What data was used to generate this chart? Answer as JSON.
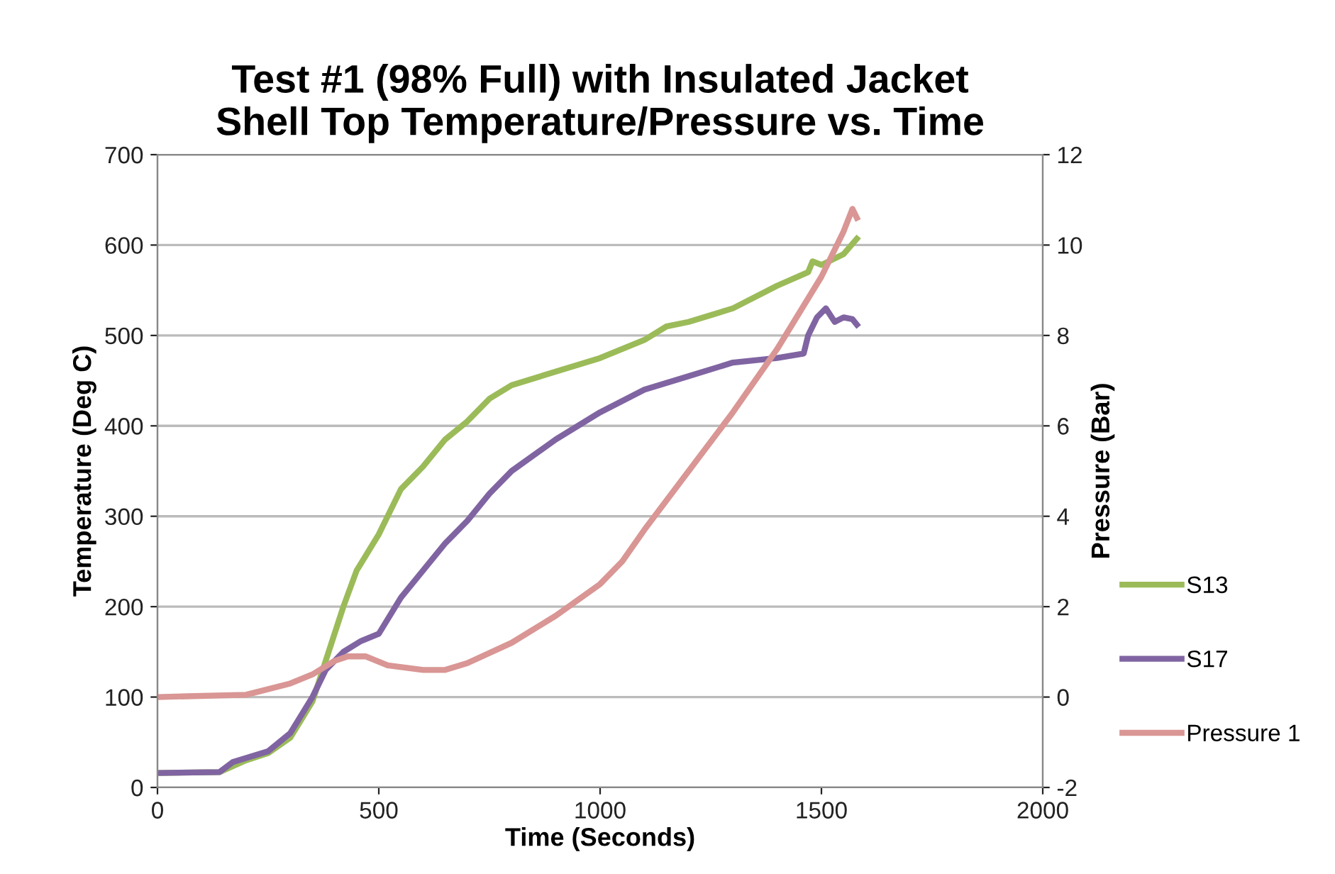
{
  "chart_data": {
    "type": "line",
    "title": "Test #1 (98% Full) with Insulated Jacket\nShell Top Temperature/Pressure vs. Time",
    "xlabel": "Time (Seconds)",
    "ylabel": "Temperature (Deg C)",
    "y2label": "Pressure (Bar)",
    "series": [
      {
        "name": "S13",
        "color": "#9bbb59",
        "x": [
          0,
          140,
          200,
          250,
          300,
          350,
          380,
          420,
          450,
          500,
          550,
          600,
          650,
          700,
          750,
          800,
          900,
          1000,
          1100,
          1150,
          1200,
          1300,
          1400,
          1470,
          1480,
          1500,
          1550,
          1580
        ],
        "values": [
          16,
          17,
          30,
          38,
          55,
          95,
          140,
          200,
          240,
          280,
          330,
          355,
          385,
          405,
          430,
          445,
          460,
          475,
          495,
          510,
          515,
          530,
          555,
          570,
          582,
          578,
          590,
          607
        ]
      },
      {
        "name": "S17",
        "color": "#8064a2",
        "x": [
          0,
          140,
          170,
          250,
          300,
          350,
          380,
          420,
          460,
          500,
          550,
          600,
          650,
          700,
          750,
          800,
          900,
          1000,
          1100,
          1200,
          1300,
          1400,
          1460,
          1470,
          1490,
          1510,
          1530,
          1550,
          1570,
          1580
        ],
        "values": [
          16,
          17,
          28,
          40,
          60,
          100,
          130,
          150,
          162,
          170,
          210,
          240,
          270,
          295,
          325,
          350,
          385,
          415,
          440,
          455,
          470,
          475,
          480,
          500,
          520,
          530,
          515,
          520,
          518,
          512
        ]
      },
      {
        "name": "Pressure 1",
        "color": "#d99694",
        "axis": "y2",
        "x": [
          0,
          200,
          300,
          350,
          400,
          430,
          470,
          520,
          600,
          650,
          700,
          800,
          900,
          1000,
          1050,
          1100,
          1200,
          1300,
          1400,
          1500,
          1550,
          1570,
          1580
        ],
        "values": [
          0,
          0.05,
          0.3,
          0.5,
          0.8,
          0.9,
          0.9,
          0.7,
          0.6,
          0.6,
          0.75,
          1.2,
          1.8,
          2.5,
          3.0,
          3.7,
          5.0,
          6.3,
          7.7,
          9.3,
          10.3,
          10.8,
          10.6
        ]
      }
    ],
    "xlim": [
      0,
      2000
    ],
    "xticks": [
      0,
      500,
      1000,
      1500,
      2000
    ],
    "ylim": [
      0,
      700
    ],
    "yticks": [
      0,
      100,
      200,
      300,
      400,
      500,
      600,
      700
    ],
    "y2lim": [
      -2,
      12
    ],
    "y2ticks": [
      -2,
      0,
      2,
      4,
      6,
      8,
      10,
      12
    ],
    "grid": "y",
    "legend": "right",
    "line_style": "solid",
    "marker": "none"
  }
}
